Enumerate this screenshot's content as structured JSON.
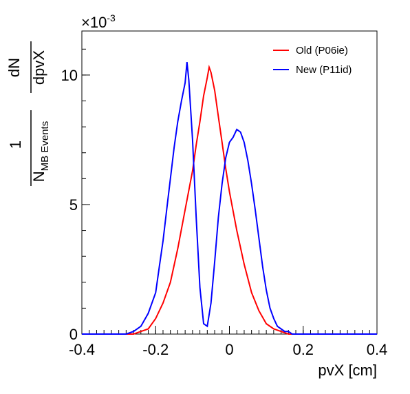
{
  "chart_data": {
    "type": "line",
    "xlabel": "pvX [cm]",
    "ylabel": {
      "fraction_one": "1",
      "fraction_n": "N",
      "fraction_n_sub": "MB Events",
      "fraction_dn": "dN",
      "fraction_dpvx": "dpvX"
    },
    "y_multiplier": {
      "base": "×10",
      "exponent": "-3"
    },
    "xlim": [
      -0.4,
      0.4
    ],
    "ylim": [
      0,
      0.0117
    ],
    "x_ticks": [
      {
        "value": -0.4,
        "label": "-0.4"
      },
      {
        "value": -0.2,
        "label": "-0.2"
      },
      {
        "value": 0,
        "label": "0"
      },
      {
        "value": 0.2,
        "label": "0.2"
      },
      {
        "value": 0.4,
        "label": "0.4"
      }
    ],
    "y_ticks": [
      {
        "value": 0,
        "label": "0"
      },
      {
        "value": 0.005,
        "label": "5"
      },
      {
        "value": 0.01,
        "label": "10"
      }
    ],
    "legend_position": "top-right",
    "series": [
      {
        "name": "Old (P06ie)",
        "color": "#ff0000",
        "x": [
          -0.26,
          -0.24,
          -0.22,
          -0.2,
          -0.18,
          -0.16,
          -0.14,
          -0.12,
          -0.1,
          -0.09,
          -0.08,
          -0.07,
          -0.06,
          -0.055,
          -0.05,
          -0.04,
          -0.03,
          -0.02,
          -0.01,
          0.0,
          0.02,
          0.04,
          0.06,
          0.08,
          0.1,
          0.12,
          0.14,
          0.16,
          0.18
        ],
        "y": [
          0.0,
          0.0001,
          0.0002,
          0.0006,
          0.0012,
          0.002,
          0.0033,
          0.0048,
          0.0063,
          0.0073,
          0.0082,
          0.0092,
          0.0099,
          0.0103,
          0.0101,
          0.0094,
          0.0084,
          0.0074,
          0.0064,
          0.0055,
          0.004,
          0.0027,
          0.0016,
          0.0009,
          0.0004,
          0.0002,
          0.0001,
          0.0,
          0.0
        ]
      },
      {
        "name": "New (P11id)",
        "color": "#0000ff",
        "x": [
          -0.28,
          -0.26,
          -0.24,
          -0.22,
          -0.2,
          -0.19,
          -0.18,
          -0.17,
          -0.16,
          -0.15,
          -0.14,
          -0.13,
          -0.12,
          -0.115,
          -0.11,
          -0.1,
          -0.09,
          -0.08,
          -0.07,
          -0.06,
          -0.05,
          -0.04,
          -0.03,
          -0.02,
          -0.01,
          0.0,
          0.01,
          0.02,
          0.03,
          0.04,
          0.05,
          0.06,
          0.07,
          0.08,
          0.09,
          0.1,
          0.11,
          0.12,
          0.13,
          0.14,
          0.15,
          0.16,
          0.17,
          0.18,
          0.2
        ],
        "y": [
          0.0,
          0.0001,
          0.0003,
          0.0008,
          0.0016,
          0.0026,
          0.0036,
          0.0048,
          0.006,
          0.0072,
          0.0082,
          0.009,
          0.0097,
          0.0105,
          0.0098,
          0.0075,
          0.0045,
          0.0018,
          0.0004,
          0.0003,
          0.0012,
          0.0028,
          0.0045,
          0.0058,
          0.0068,
          0.0074,
          0.0076,
          0.0079,
          0.0078,
          0.0074,
          0.0067,
          0.0058,
          0.0048,
          0.0037,
          0.0026,
          0.0017,
          0.001,
          0.0006,
          0.0003,
          0.0002,
          0.0001,
          0.0001,
          0.0,
          0.0,
          0.0
        ]
      }
    ]
  }
}
